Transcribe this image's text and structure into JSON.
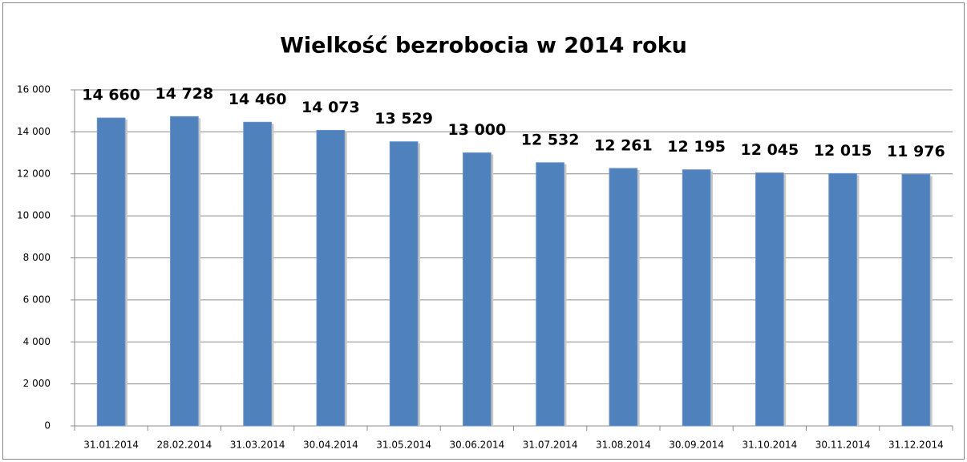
{
  "chart_data": {
    "type": "bar",
    "title": "Wielkość bezrobocia w 2014 roku",
    "categories": [
      "31.01.2014",
      "28.02.2014",
      "31.03.2014",
      "30.04.2014",
      "31.05.2014",
      "30.06.2014",
      "31.07.2014",
      "31.08.2014",
      "30.09.2014",
      "31.10.2014",
      "30.11.2014",
      "31.12.2014"
    ],
    "values": [
      14660,
      14728,
      14460,
      14073,
      13529,
      13000,
      12532,
      12261,
      12195,
      12045,
      12015,
      11976
    ],
    "value_labels": [
      "14 660",
      "14 728",
      "14 460",
      "14 073",
      "13 529",
      "13 000",
      "12 532",
      "12 261",
      "12 195",
      "12 045",
      "12 015",
      "11 976"
    ],
    "color": "#4f81bd",
    "ylim": [
      0,
      16000
    ],
    "yticks": [
      0,
      {
        "value": 2000,
        "label": "2 000"
      },
      {
        "value": 4000,
        "label": "4 000"
      },
      {
        "value": 6000,
        "label": "6 000"
      },
      {
        "value": 8000,
        "label": "8 000"
      },
      {
        "value": 10000,
        "label": "10 000"
      },
      {
        "value": 12000,
        "label": "12 000"
      },
      {
        "value": 14000,
        "label": "14 000"
      },
      {
        "value": 16000,
        "label": "16 000"
      }
    ],
    "grid": true
  }
}
